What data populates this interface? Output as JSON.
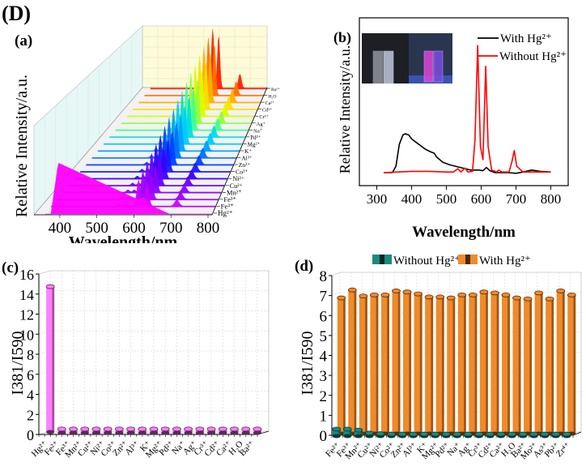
{
  "figure": {
    "main_label": "(D)",
    "panels": [
      "(a)",
      "(b)",
      "(c)",
      "(d)"
    ]
  },
  "chart_data": [
    {
      "id": "a",
      "type": "area",
      "panel_label": "(a)",
      "title": "",
      "xlabel": "Wavelength/nm",
      "ylabel": "Relative Intensity/a.u.",
      "xlim": [
        350,
        800
      ],
      "xticks": [
        400,
        500,
        600,
        700,
        800
      ],
      "series_labels": [
        "Hg²⁺",
        "Fe²⁺",
        "Fe³⁺",
        "Mn²⁺",
        "Cu²⁺",
        "Ni²⁺",
        "Co²⁺",
        "Zn²⁺",
        "Al³⁺",
        "K⁺",
        "Mg²⁺",
        "Pd²⁺",
        "Na⁺",
        "Ag⁺",
        "Cr³⁺",
        "Cd²⁺",
        "Ca²⁺",
        "H₂O",
        "Ba²⁺"
      ],
      "series_colors": [
        "#ff00ff",
        "#cc00ff",
        "#a000ff",
        "#8a00ff",
        "#6a00ff",
        "#3a00ff",
        "#1a1aff",
        "#0040ff",
        "#0070ff",
        "#00a0ff",
        "#00ccff",
        "#00e0e0",
        "#40ff90",
        "#90ff40",
        "#d8ff00",
        "#ffe000",
        "#ffb000",
        "#ff7000",
        "#ff2000"
      ],
      "notes": "Hg2+ shows broad emission peaking ~381 nm; other ions show sharp peaks at ~590 and ~615 nm and ~700 nm"
    },
    {
      "id": "b",
      "type": "line",
      "panel_label": "(b)",
      "xlabel": "Wavelength/nm",
      "ylabel": "Relative Intensity/a.u.",
      "xlim": [
        250,
        850
      ],
      "xticks": [
        300,
        400,
        500,
        600,
        700,
        800
      ],
      "legend": [
        "With Hg²⁺",
        "Without Hg²⁺"
      ],
      "legend_position": "top-right",
      "series": [
        {
          "name": "With Hg²⁺",
          "color": "#000000",
          "x": [
            320,
            345,
            355,
            365,
            375,
            382,
            392,
            400,
            420,
            440,
            455,
            465,
            472,
            490,
            510,
            540,
            570,
            595,
            605,
            615,
            625,
            640,
            680,
            700,
            720,
            745,
            770,
            800
          ],
          "y": [
            0.0,
            0.0,
            0.05,
            0.22,
            0.29,
            0.3,
            0.29,
            0.26,
            0.22,
            0.18,
            0.16,
            0.15,
            0.12,
            0.08,
            0.06,
            0.04,
            0.02,
            0.02,
            0.015,
            0.04,
            0.015,
            0.0,
            0.0,
            -0.005,
            0.005,
            0.02,
            0.01,
            0.005
          ]
        },
        {
          "name": "Without Hg²⁺",
          "color": "#ff0000",
          "x": [
            320,
            360,
            400,
            450,
            500,
            520,
            533,
            542,
            553,
            562,
            575,
            582,
            590,
            598,
            605,
            613,
            620,
            630,
            645,
            650,
            660,
            680,
            688,
            695,
            702,
            720,
            800
          ],
          "y": [
            0.0,
            0.005,
            0.01,
            0.01,
            0.005,
            0.005,
            0.03,
            0.005,
            0.035,
            0.005,
            0.01,
            0.25,
            0.98,
            0.2,
            0.1,
            0.82,
            0.2,
            0.02,
            0.005,
            0.02,
            0.005,
            0.005,
            0.08,
            0.17,
            0.05,
            0.005,
            0.005
          ]
        }
      ],
      "inset": "photo of two cuvettes under daylight and UV light"
    },
    {
      "id": "c",
      "type": "bar",
      "panel_label": "(c)",
      "xlabel": "",
      "ylabel": "I381/I590",
      "ylim": [
        0,
        16
      ],
      "yticks": [
        0,
        2,
        4,
        6,
        8,
        10,
        12,
        14,
        16
      ],
      "categories": [
        "Hg²⁺",
        "Fe²⁺",
        "Fe³⁺",
        "Mn²⁺",
        "Cu²⁺",
        "Ni²⁺",
        "Co²⁺",
        "Zn²⁺",
        "Al³⁺",
        "K⁺",
        "Mg²⁺",
        "Pd²⁺",
        "Na⁺",
        "Ag⁺",
        "Cr³⁺",
        "Cd²⁺",
        "Ca²⁺",
        "H₂O",
        "Ba²⁺"
      ],
      "values": [
        14.5,
        0.3,
        0.3,
        0.3,
        0.3,
        0.3,
        0.3,
        0.3,
        0.3,
        0.3,
        0.3,
        0.3,
        0.3,
        0.3,
        0.3,
        0.3,
        0.3,
        0.3,
        0.3
      ],
      "color": "#ff80ff"
    },
    {
      "id": "d",
      "type": "bar",
      "panel_label": "(d)",
      "xlabel": "",
      "ylabel": "I381/I590",
      "ylim": [
        0,
        8
      ],
      "yticks": [
        0,
        1,
        2,
        3,
        4,
        5,
        6,
        7,
        8
      ],
      "legend_position": "top",
      "categories": [
        "Fe²⁺",
        "Fe³⁺",
        "Mn²⁺",
        "Cu²⁺",
        "Ni²⁺",
        "Co²⁺",
        "Zn²⁺",
        "Al³⁺",
        "K⁺",
        "Mg²⁺",
        "Pd²⁺",
        "Na⁺",
        "Ag⁺",
        "Cr³⁺",
        "Cd²⁺",
        "Ca²⁺",
        "H₂O",
        "Ba²⁺",
        "Mo²⁺",
        "As³⁺",
        "Pb²⁺",
        "Zr⁴⁺"
      ],
      "series": [
        {
          "name": "Without Hg²⁺",
          "color": "#1a8a80",
          "values": [
            0.35,
            0.35,
            0.3,
            0.15,
            0.12,
            0.1,
            0.1,
            0.1,
            0.1,
            0.1,
            0.1,
            0.1,
            0.1,
            0.1,
            0.1,
            0.1,
            0.1,
            0.1,
            0.1,
            0.1,
            0.1,
            0.1
          ]
        },
        {
          "name": "With Hg²⁺",
          "color": "#f08a2a",
          "values": [
            6.8,
            7.2,
            6.9,
            6.95,
            6.95,
            7.15,
            7.1,
            7.0,
            6.85,
            6.85,
            6.8,
            6.95,
            6.95,
            7.1,
            7.05,
            6.95,
            6.8,
            6.75,
            7.05,
            6.75,
            7.15,
            6.95
          ]
        }
      ]
    }
  ]
}
